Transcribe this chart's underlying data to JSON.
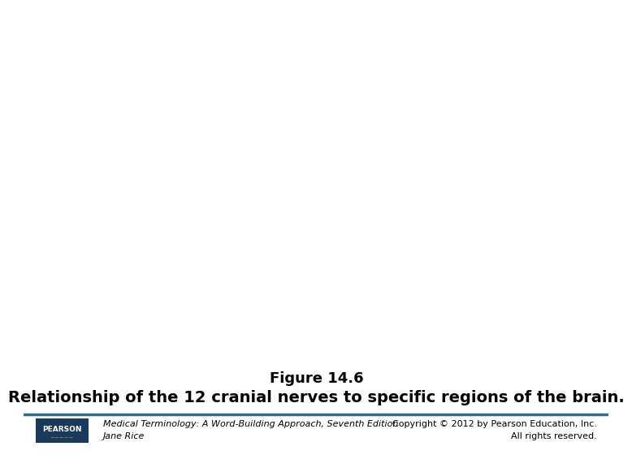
{
  "title": "Figure 14.6",
  "subtitle": "Relationship of the 12 cranial nerves to specific regions of the brain.",
  "footer_left_line1": "Medical Terminology: A Word-Building Approach, Seventh Edition",
  "footer_left_line2": "Jane Rice",
  "footer_right_line1": "Copyright © 2012 by Pearson Education, Inc.",
  "footer_right_line2": "All rights reserved.",
  "background_color": "#ffffff",
  "title_fontsize": 13,
  "subtitle_fontsize": 14,
  "footer_fontsize": 8,
  "footer_bar_color": "#2e6e8e",
  "pearson_box_color": "#1a3a5c",
  "pearson_text_color": "#ffffff",
  "title_bold": true,
  "subtitle_bold": true
}
